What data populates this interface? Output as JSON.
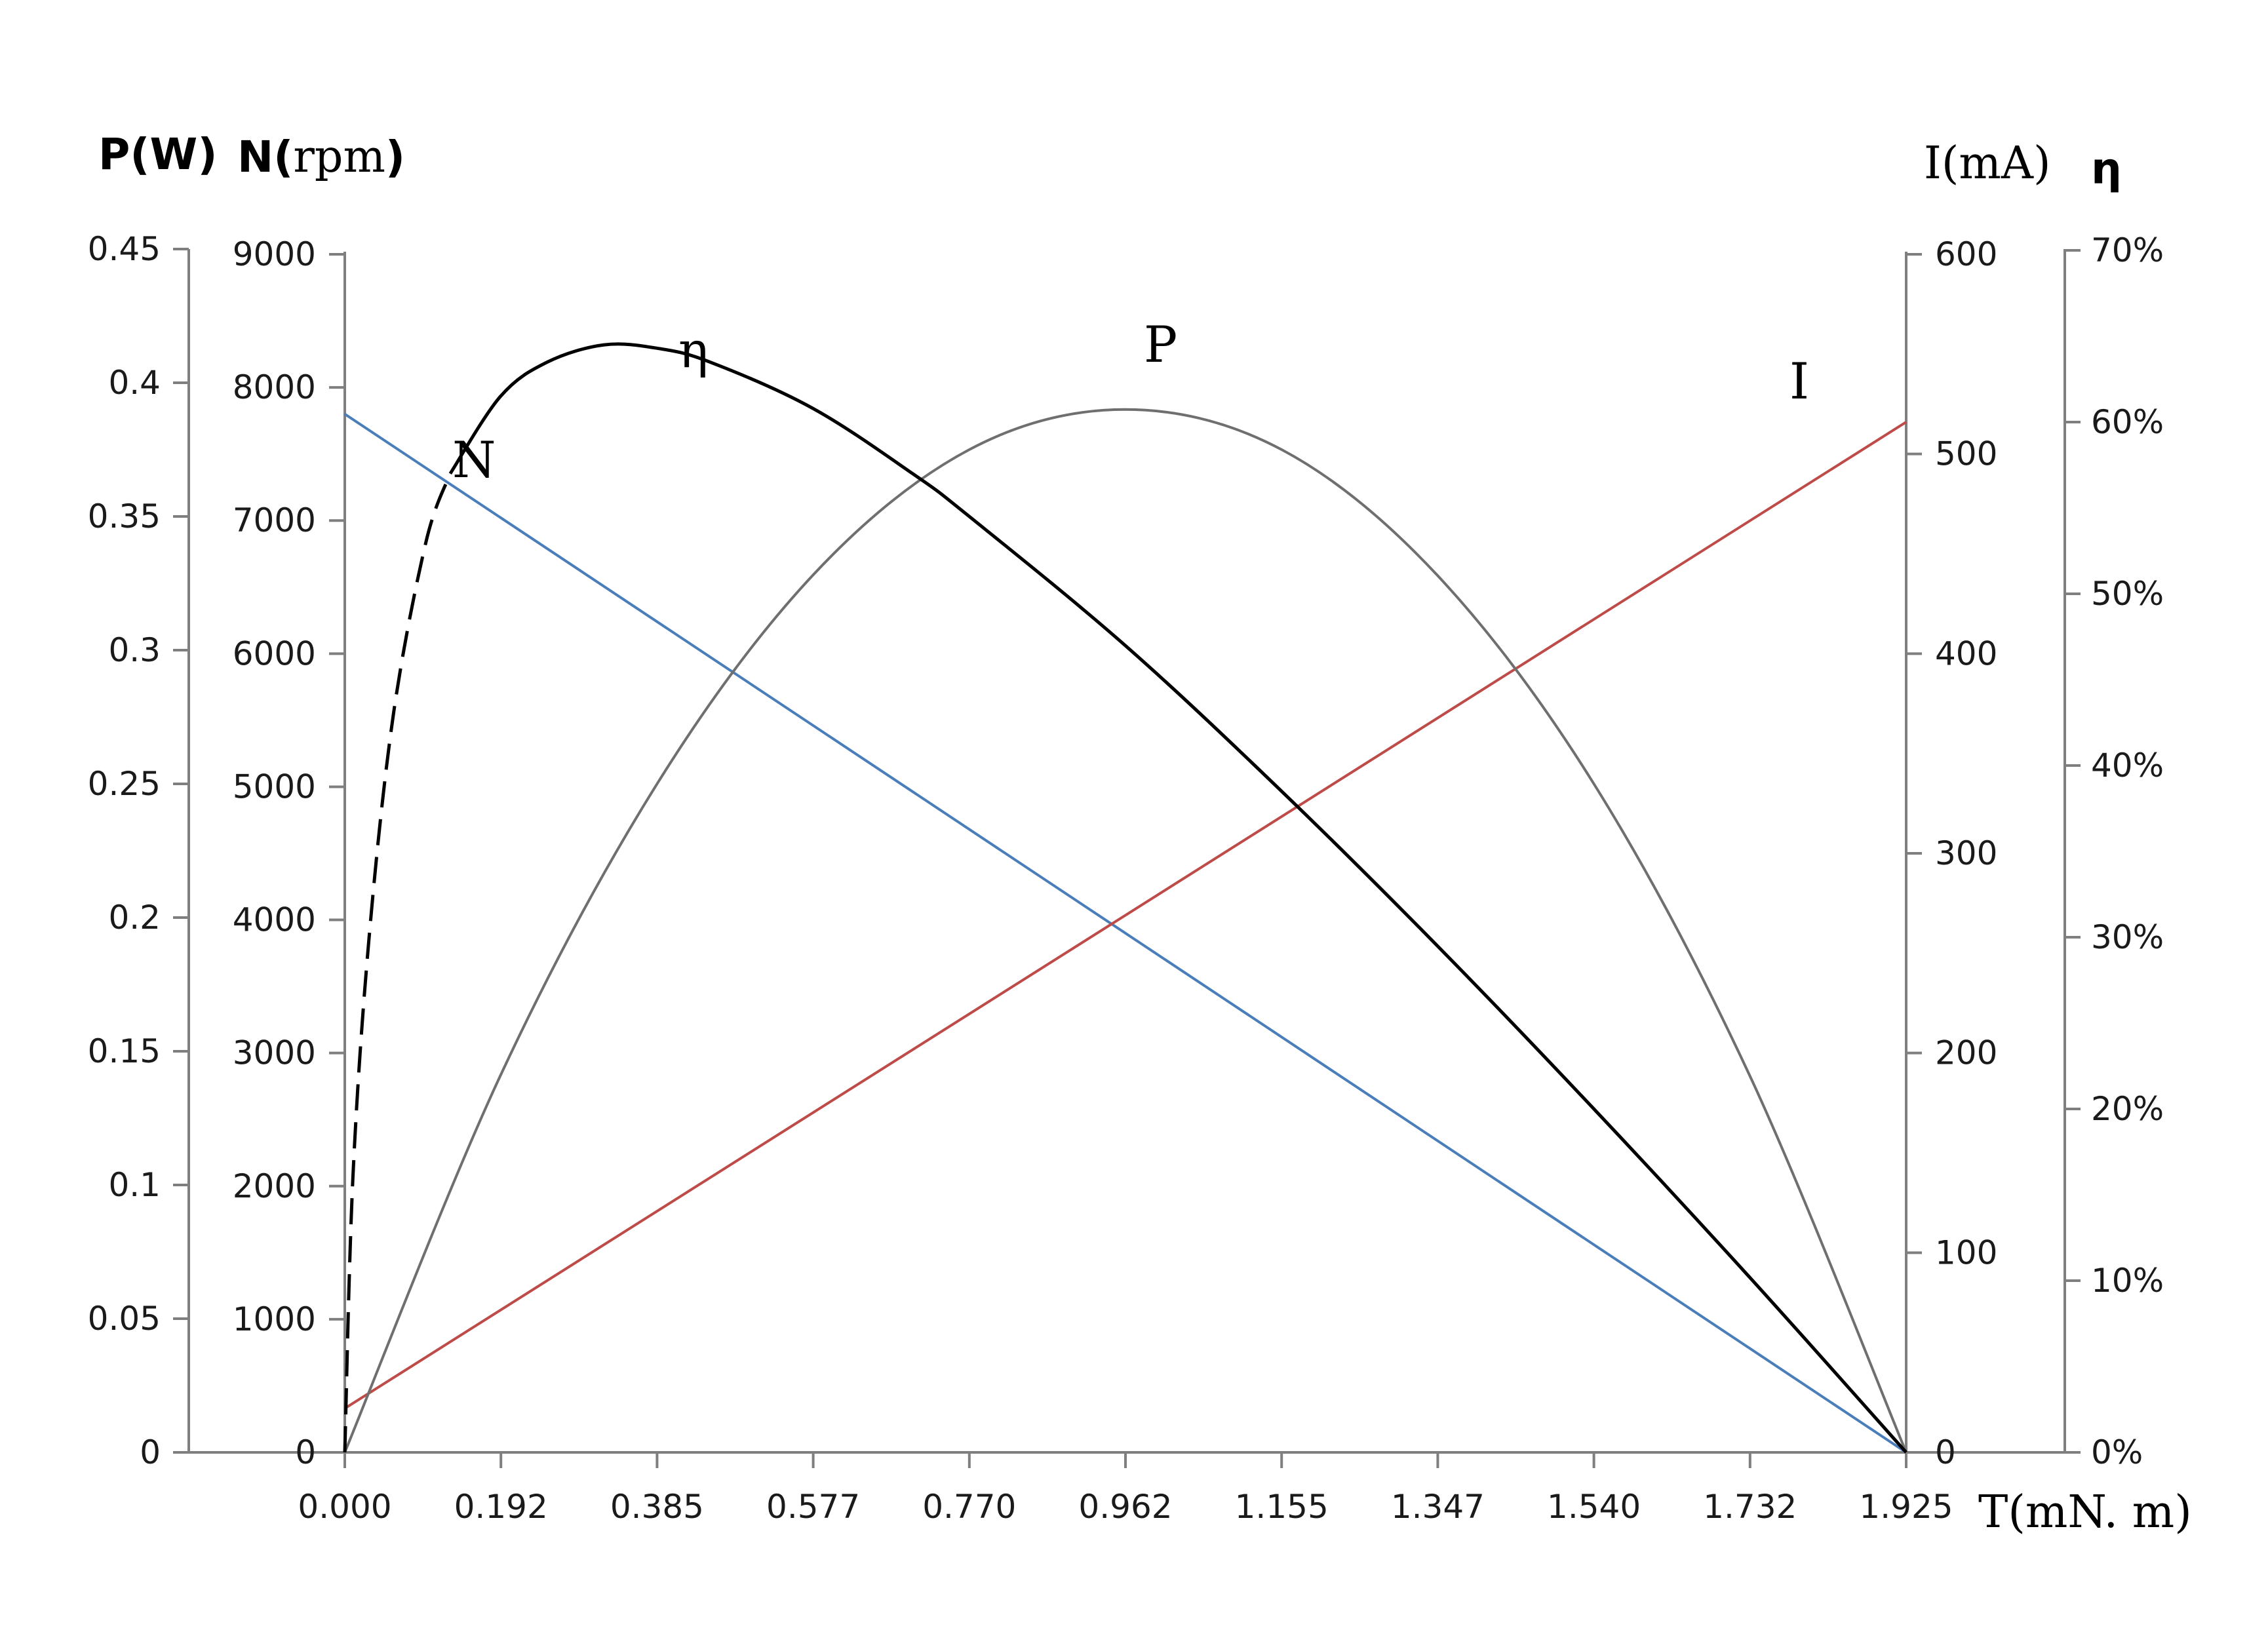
{
  "chart_data": {
    "type": "line",
    "x_axis": {
      "label": "T(mN. m)",
      "range": [
        0,
        1.925
      ],
      "ticks": [
        "0.000",
        "0.192",
        "0.385",
        "0.577",
        "0.770",
        "0.962",
        "1.155",
        "1.347",
        "1.540",
        "1.732",
        "1.925"
      ]
    },
    "y_axes": {
      "power": {
        "label_main": "P(W)",
        "range": [
          0,
          0.45
        ],
        "ticks": [
          "0",
          "0.05",
          "0.1",
          "0.15",
          "0.2",
          "0.25",
          "0.3",
          "0.35",
          "0.4",
          "0.45"
        ]
      },
      "speed": {
        "label_main": "N(",
        "label_unit": "rpm",
        "label_close": ")",
        "range": [
          0,
          9000
        ],
        "ticks": [
          "0",
          "1000",
          "2000",
          "3000",
          "4000",
          "5000",
          "6000",
          "7000",
          "8000",
          "9000"
        ]
      },
      "current": {
        "label": "I(mA)",
        "range": [
          0,
          600
        ],
        "ticks": [
          "0",
          "100",
          "200",
          "300",
          "400",
          "500",
          "600"
        ]
      },
      "efficiency": {
        "label": "η",
        "range": [
          0,
          0.7
        ],
        "ticks": [
          "0%",
          "10%",
          "20%",
          "30%",
          "40%",
          "50%",
          "60%",
          "70%"
        ]
      }
    },
    "series": [
      {
        "name": "N",
        "axis": "speed",
        "color": "#4a7ebb",
        "points": [
          [
            0,
            7800
          ],
          [
            1.925,
            0
          ]
        ]
      },
      {
        "name": "I",
        "axis": "current",
        "color": "#be4b48",
        "points": [
          [
            0,
            22
          ],
          [
            1.925,
            516
          ]
        ]
      },
      {
        "name": "P",
        "axis": "power",
        "color": "#6f6f6f",
        "points": [
          [
            0,
            0
          ],
          [
            0.192,
            0.141
          ],
          [
            0.385,
            0.25
          ],
          [
            0.577,
            0.328
          ],
          [
            0.77,
            0.375
          ],
          [
            0.962,
            0.39
          ],
          [
            1.155,
            0.375
          ],
          [
            1.347,
            0.328
          ],
          [
            1.54,
            0.25
          ],
          [
            1.732,
            0.141
          ],
          [
            1.925,
            0
          ]
        ]
      },
      {
        "name": "η",
        "axis": "efficiency",
        "color": "#000000",
        "dashed_until": 0.13,
        "points": [
          [
            0,
            0
          ],
          [
            0.01,
            0.16
          ],
          [
            0.03,
            0.3
          ],
          [
            0.06,
            0.43
          ],
          [
            0.1,
            0.53
          ],
          [
            0.13,
            0.57
          ],
          [
            0.192,
            0.615
          ],
          [
            0.25,
            0.635
          ],
          [
            0.32,
            0.645
          ],
          [
            0.385,
            0.643
          ],
          [
            0.45,
            0.635
          ],
          [
            0.577,
            0.608
          ],
          [
            0.7,
            0.57
          ],
          [
            0.77,
            0.545
          ],
          [
            0.962,
            0.47
          ],
          [
            1.155,
            0.385
          ],
          [
            1.347,
            0.295
          ],
          [
            1.54,
            0.2
          ],
          [
            1.732,
            0.102
          ],
          [
            1.925,
            0
          ]
        ]
      }
    ]
  },
  "curve_labels": {
    "n": "N",
    "eta": "η",
    "p": "P",
    "i": "I"
  }
}
